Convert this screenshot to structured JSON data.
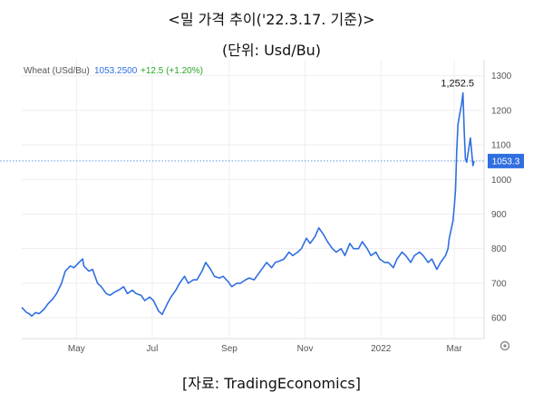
{
  "header": {
    "title": "<밀 가격 추이('22.3.17. 기준)>",
    "unit": "(단위: Usd/Bu)"
  },
  "source": "[자료: TradingEconomics]",
  "chart_data": {
    "type": "line",
    "instrument": "Wheat (USd/Bu)",
    "last_value_text": "1053.2500",
    "change_text": "+12.5 (+1.20%)",
    "current_label": "1053.3",
    "peak_label": "1,252.5",
    "x_tick_labels": [
      "May",
      "Jul",
      "Sep",
      "Nov",
      "2022",
      "Mar"
    ],
    "y_tick_labels": [
      "600",
      "700",
      "800",
      "900",
      "1000",
      "1100",
      "1200",
      "1300"
    ],
    "ylim": [
      540,
      1320
    ],
    "xlim": [
      "2021-03-18",
      "2022-03-25"
    ],
    "grid": true,
    "colors": {
      "line": "#2f6fe0",
      "value": "#2f6fe0",
      "change": "#2aa52a",
      "current_badge": "#2f6fe0"
    },
    "series": [
      {
        "x": [
          "2021-03-18",
          "2021-03-22",
          "2021-03-24",
          "2021-03-26",
          "2021-03-29",
          "2021-04-01",
          "2021-04-05",
          "2021-04-08",
          "2021-04-12",
          "2021-04-15",
          "2021-04-19",
          "2021-04-22",
          "2021-04-26",
          "2021-04-29",
          "2021-05-03",
          "2021-05-06",
          "2021-05-07",
          "2021-05-11",
          "2021-05-14",
          "2021-05-18",
          "2021-05-21",
          "2021-05-25",
          "2021-05-28",
          "2021-06-01",
          "2021-06-04",
          "2021-06-08",
          "2021-06-11",
          "2021-06-15",
          "2021-06-18",
          "2021-06-22",
          "2021-06-25",
          "2021-06-29",
          "2021-07-02",
          "2021-07-06",
          "2021-07-09",
          "2021-07-13",
          "2021-07-16",
          "2021-07-20",
          "2021-07-23",
          "2021-07-27",
          "2021-07-30",
          "2021-08-03",
          "2021-08-06",
          "2021-08-10",
          "2021-08-13",
          "2021-08-17",
          "2021-08-20",
          "2021-08-24",
          "2021-08-27",
          "2021-08-31",
          "2021-09-03",
          "2021-09-07",
          "2021-09-10",
          "2021-09-14",
          "2021-09-17",
          "2021-09-21",
          "2021-09-24",
          "2021-09-28",
          "2021-10-01",
          "2021-10-05",
          "2021-10-08",
          "2021-10-12",
          "2021-10-15",
          "2021-10-19",
          "2021-10-22",
          "2021-10-26",
          "2021-10-29",
          "2021-11-02",
          "2021-11-05",
          "2021-11-09",
          "2021-11-12",
          "2021-11-16",
          "2021-11-19",
          "2021-11-23",
          "2021-11-26",
          "2021-11-30",
          "2021-12-03",
          "2021-12-07",
          "2021-12-10",
          "2021-12-14",
          "2021-12-17",
          "2021-12-21",
          "2021-12-24",
          "2021-12-28",
          "2021-12-31",
          "2022-01-04",
          "2022-01-07",
          "2022-01-11",
          "2022-01-14",
          "2022-01-18",
          "2022-01-21",
          "2022-01-25",
          "2022-01-28",
          "2022-02-01",
          "2022-02-04",
          "2022-02-08",
          "2022-02-11",
          "2022-02-15",
          "2022-02-18",
          "2022-02-22",
          "2022-02-24",
          "2022-02-25",
          "2022-02-28",
          "2022-03-01",
          "2022-03-02",
          "2022-03-03",
          "2022-03-04",
          "2022-03-07",
          "2022-03-08",
          "2022-03-09",
          "2022-03-10",
          "2022-03-11",
          "2022-03-14",
          "2022-03-15",
          "2022-03-16",
          "2022-03-17"
        ],
        "y": [
          630,
          615,
          612,
          605,
          615,
          612,
          625,
          640,
          655,
          670,
          700,
          735,
          750,
          745,
          760,
          770,
          750,
          735,
          740,
          700,
          690,
          670,
          665,
          675,
          680,
          690,
          670,
          680,
          670,
          665,
          650,
          660,
          650,
          620,
          610,
          640,
          660,
          680,
          700,
          720,
          700,
          710,
          710,
          735,
          760,
          740,
          720,
          715,
          720,
          705,
          690,
          700,
          700,
          710,
          715,
          710,
          725,
          745,
          760,
          745,
          760,
          765,
          770,
          790,
          780,
          790,
          800,
          830,
          815,
          835,
          860,
          840,
          820,
          800,
          790,
          800,
          780,
          815,
          800,
          800,
          820,
          800,
          780,
          790,
          770,
          760,
          760,
          745,
          770,
          790,
          780,
          760,
          780,
          790,
          780,
          760,
          770,
          740,
          760,
          780,
          800,
          830,
          880,
          920,
          970,
          1080,
          1160,
          1220,
          1250,
          1140,
          1060,
          1050,
          1120,
          1080,
          1040,
          1053.3
        ]
      }
    ]
  }
}
